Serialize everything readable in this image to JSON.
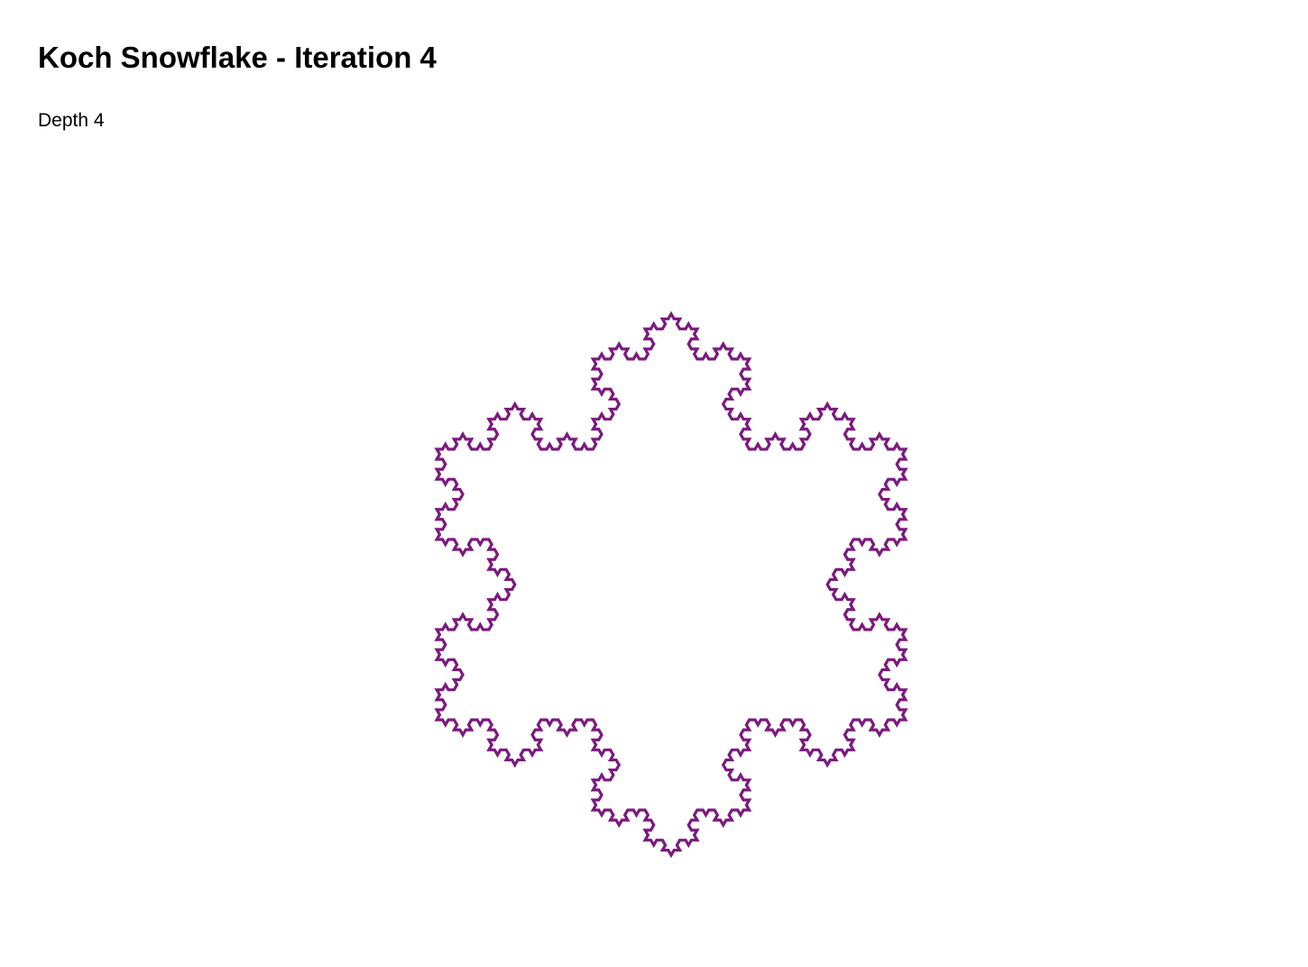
{
  "page": {
    "title": "Koch Snowflake - Iteration 4",
    "subtitle": "Depth 4"
  },
  "fractal": {
    "type": "koch-snowflake",
    "depth": 4,
    "stroke_color": "#7b1a7e",
    "background_color": "#ffffff"
  }
}
